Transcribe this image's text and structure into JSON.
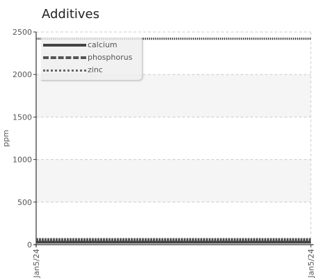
{
  "chart_data": {
    "type": "line",
    "title": "Additives",
    "xlabel": "",
    "ylabel": "ppm",
    "x": [
      "Jan5/24",
      "Jan5/24"
    ],
    "ylim": [
      0,
      2500
    ],
    "yticks": [
      0,
      500,
      1000,
      1500,
      2000,
      2500
    ],
    "yticklabels": [
      "0",
      "500",
      "1000",
      "1500",
      "2000",
      "2500"
    ],
    "xticklabels": [
      "Jan5/24",
      "Jan5/24"
    ],
    "grid": true,
    "legend_position": "top-left",
    "series": [
      {
        "name": "calcium",
        "values": [
          30,
          30
        ],
        "color": "#444444",
        "style": "solid"
      },
      {
        "name": "phosphorus",
        "values": [
          60,
          60
        ],
        "color": "#555555",
        "style": "dashed"
      },
      {
        "name": "zinc",
        "values": [
          2420,
          2420
        ],
        "color": "#666666",
        "style": "dotted"
      }
    ]
  }
}
